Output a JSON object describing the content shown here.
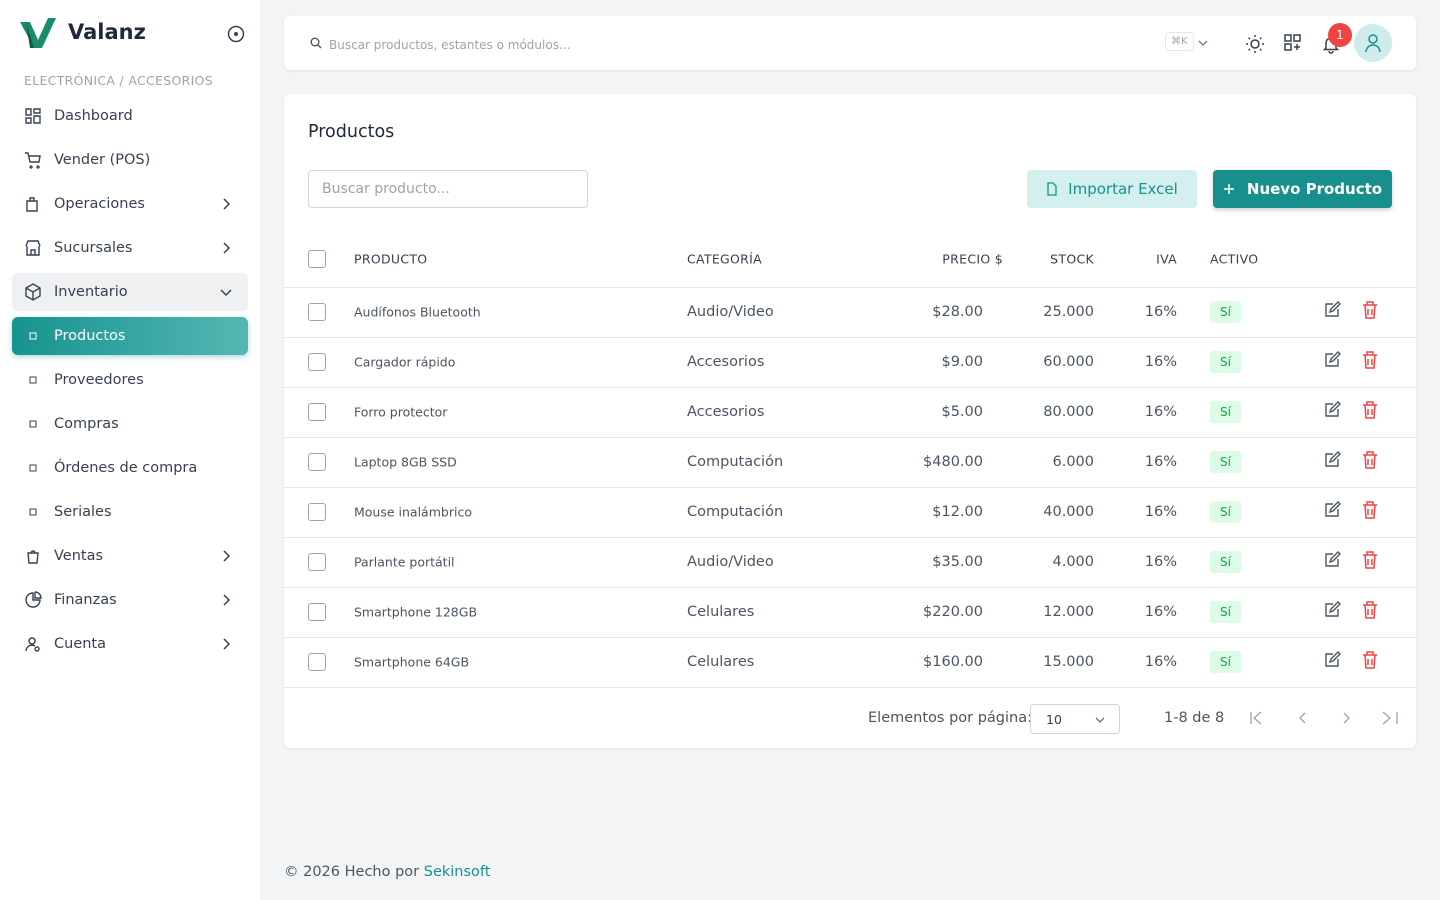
{
  "sidebar": {
    "brand": "Valanz",
    "section": "ELECTRÓNICA / ACCESORIOS",
    "menu": [
      "Dashboard",
      "Vender (POS)",
      "Operaciones",
      "Sucursales",
      "Inventario",
      "Productos",
      "Proveedores",
      "Compras",
      "Órdenes de compra",
      "Seriales",
      "Ventas",
      "Finanzas",
      "Cuenta"
    ]
  },
  "topbar": {
    "search_placeholder": "Buscar productos, estantes o módulos...",
    "shortcut": "⌘K",
    "notifications": "1"
  },
  "page": {
    "title": "Productos",
    "search_placeholder": "Buscar producto...",
    "import_button": "Importar Excel",
    "new_button": "Nuevo Producto"
  },
  "table": {
    "columns": [
      "PRODUCTO",
      "CATEGORÍA",
      "PRECIO $",
      "STOCK",
      "IVA",
      "ACTIVO"
    ],
    "rows": [
      [
        "Audífonos Bluetooth",
        "Audio/Video",
        "$28.00",
        "25.000",
        "16%",
        "Sí"
      ],
      [
        "Cargador rápido",
        "Accesorios",
        "$9.00",
        "60.000",
        "16%",
        "Sí"
      ],
      [
        "Forro protector",
        "Accesorios",
        "$5.00",
        "80.000",
        "16%",
        "Sí"
      ],
      [
        "Laptop 8GB SSD",
        "Computación",
        "$480.00",
        "6.000",
        "16%",
        "Sí"
      ],
      [
        "Mouse inalámbrico",
        "Computación",
        "$12.00",
        "40.000",
        "16%",
        "Sí"
      ],
      [
        "Parlante portátil",
        "Audio/Video",
        "$35.00",
        "4.000",
        "16%",
        "Sí"
      ],
      [
        "Smartphone 128GB",
        "Celulares",
        "$220.00",
        "12.000",
        "16%",
        "Sí"
      ],
      [
        "Smartphone 64GB",
        "Celulares",
        "$160.00",
        "15.000",
        "16%",
        "Sí"
      ]
    ]
  },
  "pagination": {
    "label": "Elementos por página:",
    "per_page": "10",
    "range": "1-8 de 8"
  },
  "footer": {
    "text": "© 2026 Hecho por",
    "link": "Sekinsoft"
  }
}
